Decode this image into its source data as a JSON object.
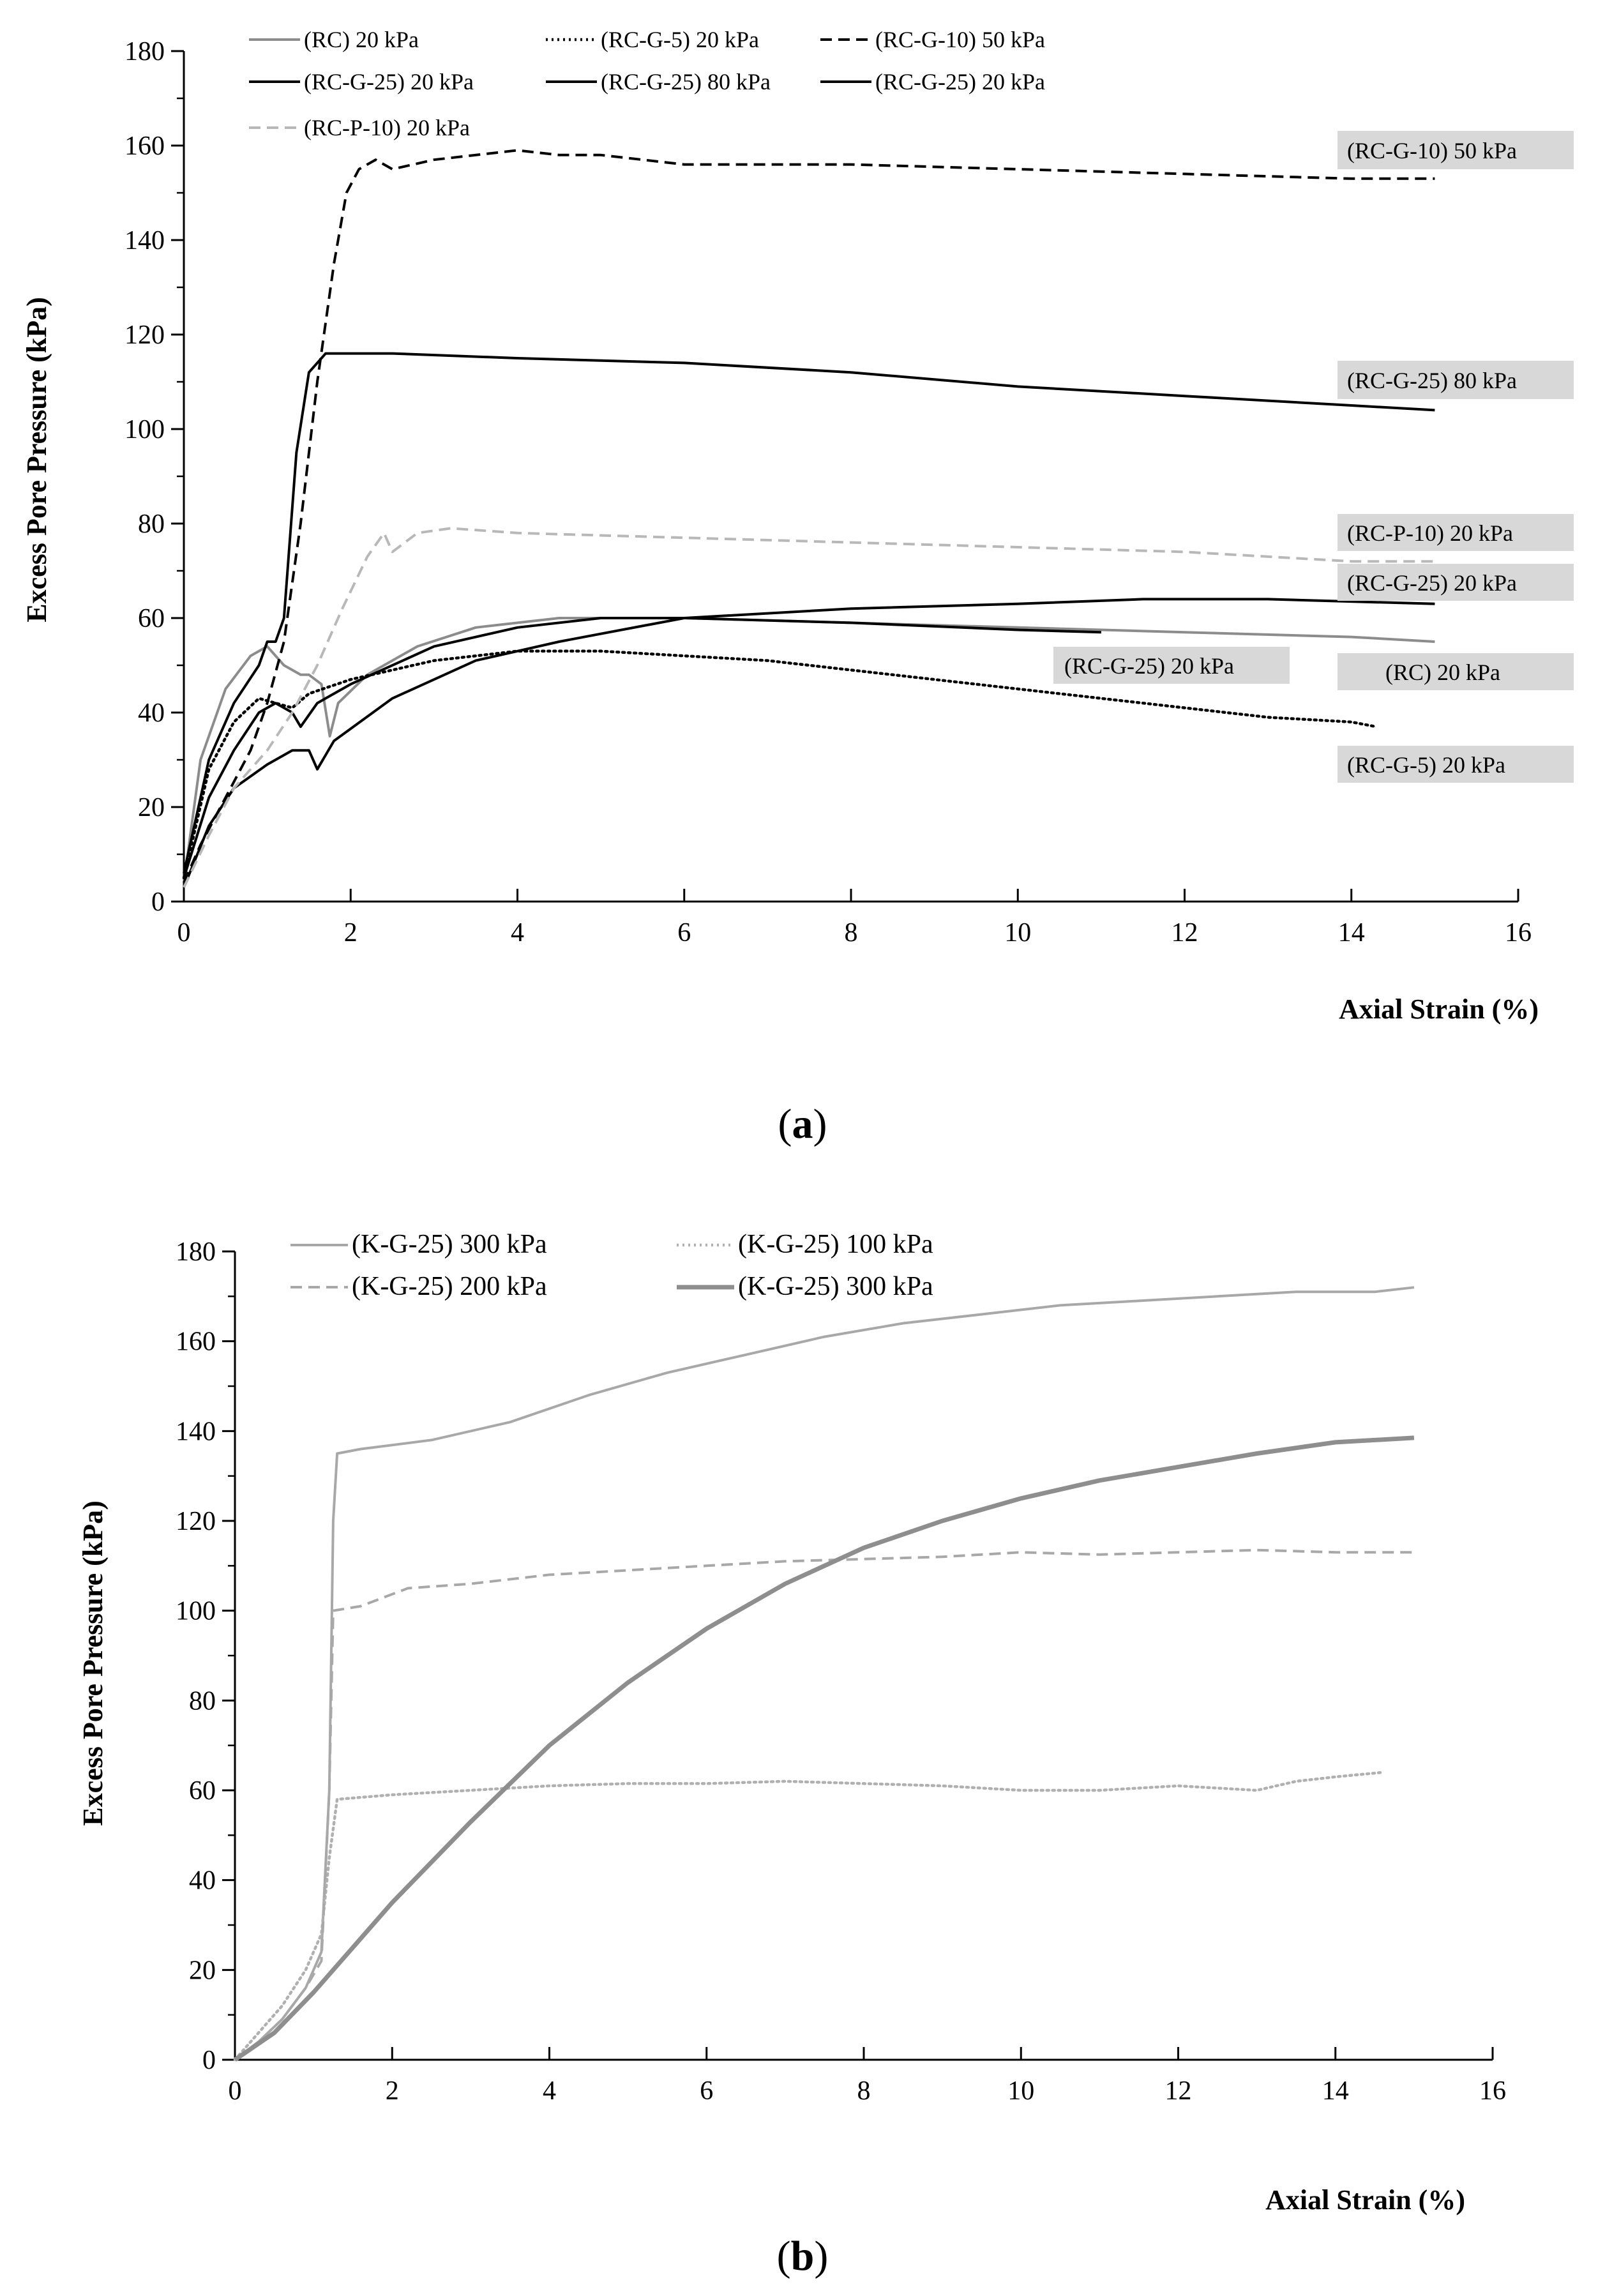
{
  "chart_data": [
    {
      "panel_label": "a",
      "type": "line",
      "xlabel": "Axial Strain  (%)",
      "ylabel": "Excess Pore Pressure  (kPa)",
      "xlim": [
        0,
        16
      ],
      "ylim": [
        0,
        180
      ],
      "xticks": [
        "0",
        "2",
        "4",
        "6",
        "8",
        "10",
        "12",
        "14",
        "16"
      ],
      "yticks": [
        "0",
        "20",
        "40",
        "60",
        "80",
        "100",
        "120",
        "140",
        "160",
        "180"
      ],
      "legend_position": "top-left",
      "series": [
        {
          "name": "(RC) 20 kPa",
          "color": "#8c8c8c",
          "style": "solid",
          "points": [
            [
              0,
              4
            ],
            [
              0.2,
              30
            ],
            [
              0.5,
              45
            ],
            [
              0.8,
              52
            ],
            [
              1.0,
              54
            ],
            [
              1.2,
              50
            ],
            [
              1.4,
              48
            ],
            [
              1.5,
              48
            ],
            [
              1.65,
              46
            ],
            [
              1.75,
              35
            ],
            [
              1.85,
              42
            ],
            [
              2.2,
              48
            ],
            [
              2.8,
              54
            ],
            [
              3.5,
              58
            ],
            [
              4.5,
              60
            ],
            [
              6,
              60
            ],
            [
              8,
              59
            ],
            [
              10,
              58
            ],
            [
              12,
              57
            ],
            [
              14,
              56
            ],
            [
              15,
              55
            ]
          ]
        },
        {
          "name": "(RC-G-5) 20 kPa",
          "color": "#000000",
          "style": "dotted",
          "points": [
            [
              0,
              5
            ],
            [
              0.3,
              28
            ],
            [
              0.6,
              38
            ],
            [
              0.9,
              43
            ],
            [
              1.1,
              42
            ],
            [
              1.3,
              41
            ],
            [
              1.5,
              44
            ],
            [
              2,
              47
            ],
            [
              3,
              51
            ],
            [
              4,
              53
            ],
            [
              5,
              53
            ],
            [
              6,
              52
            ],
            [
              7,
              51
            ],
            [
              8,
              49
            ],
            [
              9,
              47
            ],
            [
              10,
              45
            ],
            [
              11,
              43
            ],
            [
              12,
              41
            ],
            [
              13,
              39
            ],
            [
              14,
              38
            ],
            [
              14.3,
              37
            ]
          ]
        },
        {
          "name": "(RC-G-10) 50 kPa",
          "color": "#000000",
          "style": "dashed",
          "points": [
            [
              0,
              4
            ],
            [
              0.2,
              12
            ],
            [
              0.5,
              22
            ],
            [
              0.8,
              32
            ],
            [
              1.0,
              42
            ],
            [
              1.2,
              55
            ],
            [
              1.4,
              80
            ],
            [
              1.6,
              110
            ],
            [
              1.8,
              135
            ],
            [
              1.95,
              150
            ],
            [
              2.1,
              155
            ],
            [
              2.3,
              157
            ],
            [
              2.5,
              155
            ],
            [
              3,
              157
            ],
            [
              4,
              159
            ],
            [
              4.5,
              158
            ],
            [
              5,
              158
            ],
            [
              5.5,
              157
            ],
            [
              6,
              156
            ],
            [
              7,
              156
            ],
            [
              8,
              156
            ],
            [
              10,
              155
            ],
            [
              12,
              154
            ],
            [
              14,
              153
            ],
            [
              15,
              153
            ]
          ]
        },
        {
          "name": "(RC-G-25) 20 kPa",
          "color": "#000000",
          "style": "solid",
          "points": [
            [
              0,
              5
            ],
            [
              0.3,
              22
            ],
            [
              0.6,
              32
            ],
            [
              0.9,
              40
            ],
            [
              1.1,
              42
            ],
            [
              1.3,
              40
            ],
            [
              1.4,
              37
            ],
            [
              1.6,
              42
            ],
            [
              2,
              46
            ],
            [
              3,
              54
            ],
            [
              4,
              58
            ],
            [
              5,
              60
            ],
            [
              6,
              60
            ],
            [
              8,
              59
            ],
            [
              10,
              57.5
            ],
            [
              11,
              57
            ]
          ]
        },
        {
          "name": "(RC-G-25) 80 kPa",
          "color": "#000000",
          "style": "solid",
          "points": [
            [
              0,
              6
            ],
            [
              0.3,
              30
            ],
            [
              0.6,
              42
            ],
            [
              0.9,
              50
            ],
            [
              1.0,
              55
            ],
            [
              1.1,
              55
            ],
            [
              1.2,
              60
            ],
            [
              1.35,
              95
            ],
            [
              1.5,
              112
            ],
            [
              1.7,
              116
            ],
            [
              2.5,
              116
            ],
            [
              4,
              115
            ],
            [
              6,
              114
            ],
            [
              8,
              112
            ],
            [
              10,
              109
            ],
            [
              12,
              107
            ],
            [
              14,
              105
            ],
            [
              15,
              104
            ]
          ]
        },
        {
          "name": "(RC-G-25) 20 kPa",
          "color": "#000000",
          "style": "solid",
          "points": [
            [
              0,
              3
            ],
            [
              0.3,
              16
            ],
            [
              0.6,
              24
            ],
            [
              1.0,
              29
            ],
            [
              1.3,
              32
            ],
            [
              1.5,
              32
            ],
            [
              1.6,
              28
            ],
            [
              1.8,
              34
            ],
            [
              2.5,
              43
            ],
            [
              3.5,
              51
            ],
            [
              4.5,
              55
            ],
            [
              6,
              60
            ],
            [
              8,
              62
            ],
            [
              10,
              63
            ],
            [
              11.5,
              64
            ],
            [
              13,
              64
            ],
            [
              15,
              63
            ]
          ]
        },
        {
          "name": "(RC-P-10) 20 kPa",
          "color": "#b8b8b8",
          "style": "dashed",
          "points": [
            [
              0,
              3
            ],
            [
              0.3,
              14
            ],
            [
              0.6,
              24
            ],
            [
              1.0,
              32
            ],
            [
              1.3,
              40
            ],
            [
              1.6,
              50
            ],
            [
              1.9,
              62
            ],
            [
              2.2,
              73
            ],
            [
              2.4,
              78
            ],
            [
              2.5,
              74
            ],
            [
              2.8,
              78
            ],
            [
              3.2,
              79
            ],
            [
              4,
              78
            ],
            [
              6,
              77
            ],
            [
              8,
              76
            ],
            [
              10,
              75
            ],
            [
              12,
              74
            ],
            [
              14,
              72
            ],
            [
              15,
              72
            ]
          ]
        }
      ],
      "annotations": [
        {
          "text": "(RC-G-10) 50 kPa"
        },
        {
          "text": "(RC-G-25) 80 kPa"
        },
        {
          "text": "(RC-P-10) 20 kPa"
        },
        {
          "text": "(RC-G-25) 20 kPa"
        },
        {
          "text": "(RC-G-25) 20 kPa"
        },
        {
          "text": "(RC) 20 kPa"
        },
        {
          "text": "(RC-G-5) 20 kPa"
        }
      ]
    },
    {
      "panel_label": "b",
      "type": "line",
      "xlabel": "Axial Strain  (%)",
      "ylabel": "Excess Pore Pressure  (kPa)",
      "xlim": [
        0,
        16
      ],
      "ylim": [
        0,
        180
      ],
      "xticks": [
        "0",
        "2",
        "4",
        "6",
        "8",
        "10",
        "12",
        "14",
        "16"
      ],
      "yticks": [
        "0",
        "20",
        "40",
        "60",
        "80",
        "100",
        "120",
        "140",
        "160",
        "180"
      ],
      "legend_position": "top-left",
      "series": [
        {
          "name": "(K-G-25) 300 kPa",
          "color": "#a8a8a8",
          "style": "solid",
          "points": [
            [
              0,
              0
            ],
            [
              0.3,
              4
            ],
            [
              0.6,
              9
            ],
            [
              0.9,
              16
            ],
            [
              1.1,
              24
            ],
            [
              1.2,
              60
            ],
            [
              1.25,
              120
            ],
            [
              1.3,
              135
            ],
            [
              1.6,
              136
            ],
            [
              2.5,
              138
            ],
            [
              3.5,
              142
            ],
            [
              4.5,
              148
            ],
            [
              5.5,
              153
            ],
            [
              6.5,
              157
            ],
            [
              7.5,
              161
            ],
            [
              8.5,
              164
            ],
            [
              9.5,
              166
            ],
            [
              10.5,
              168
            ],
            [
              11.5,
              169
            ],
            [
              12.5,
              170
            ],
            [
              13.5,
              171
            ],
            [
              14.5,
              171
            ],
            [
              15,
              172
            ]
          ]
        },
        {
          "name": "(K-G-25) 100 kPa",
          "color": "#b0b0b0",
          "style": "dotted",
          "points": [
            [
              0,
              0
            ],
            [
              0.3,
              6
            ],
            [
              0.6,
              12
            ],
            [
              0.9,
              20
            ],
            [
              1.1,
              28
            ],
            [
              1.2,
              45
            ],
            [
              1.3,
              58
            ],
            [
              2,
              59
            ],
            [
              3,
              60
            ],
            [
              4,
              61
            ],
            [
              5,
              61.5
            ],
            [
              6,
              61.5
            ],
            [
              7,
              62
            ],
            [
              8,
              61.5
            ],
            [
              9,
              61
            ],
            [
              10,
              60
            ],
            [
              11,
              60
            ],
            [
              12,
              61
            ],
            [
              13,
              60
            ],
            [
              13.5,
              62
            ],
            [
              14,
              63
            ],
            [
              14.6,
              64
            ]
          ]
        },
        {
          "name": "(K-G-25) 200 kPa",
          "color": "#a8a8a8",
          "style": "dashed",
          "points": [
            [
              0,
              0
            ],
            [
              0.3,
              4
            ],
            [
              0.6,
              9
            ],
            [
              0.9,
              16
            ],
            [
              1.1,
              22
            ],
            [
              1.2,
              60
            ],
            [
              1.25,
              100
            ],
            [
              1.6,
              101
            ],
            [
              2.2,
              105
            ],
            [
              3,
              106
            ],
            [
              4,
              108
            ],
            [
              5,
              109
            ],
            [
              6,
              110
            ],
            [
              7,
              111
            ],
            [
              8,
              111.5
            ],
            [
              9,
              112
            ],
            [
              10,
              113
            ],
            [
              11,
              112.5
            ],
            [
              12,
              113
            ],
            [
              13,
              113.5
            ],
            [
              14,
              113
            ],
            [
              15,
              113
            ]
          ]
        },
        {
          "name": "(K-G-25) 300 kPa",
          "color": "#8e8e8e",
          "style": "solid-thick",
          "points": [
            [
              0,
              0
            ],
            [
              0.5,
              6
            ],
            [
              1,
              15
            ],
            [
              1.5,
              25
            ],
            [
              2,
              35
            ],
            [
              3,
              53
            ],
            [
              4,
              70
            ],
            [
              5,
              84
            ],
            [
              6,
              96
            ],
            [
              7,
              106
            ],
            [
              8,
              114
            ],
            [
              9,
              120
            ],
            [
              10,
              125
            ],
            [
              11,
              129
            ],
            [
              12,
              132
            ],
            [
              13,
              135
            ],
            [
              14,
              137.5
            ],
            [
              15,
              138.5
            ]
          ]
        }
      ]
    }
  ]
}
